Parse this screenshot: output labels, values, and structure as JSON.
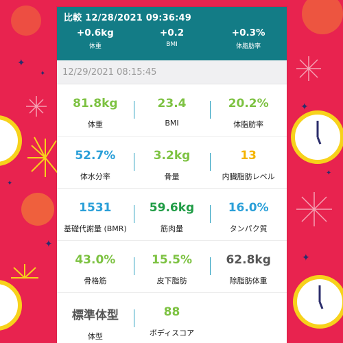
{
  "compare": {
    "title": "比較 12/28/2021 09:36:49",
    "items": [
      {
        "value": "+0.6kg",
        "label": "体重"
      },
      {
        "value": "+0.2",
        "label": "BMI"
      },
      {
        "value": "+0.3%",
        "label": "体脂肪率"
      }
    ]
  },
  "date": "12/29/2021 08:15:45",
  "rows": [
    [
      {
        "value": "81.8kg",
        "label": "体重",
        "color": "#7dc242"
      },
      {
        "value": "23.4",
        "label": "BMI",
        "color": "#7dc242"
      },
      {
        "value": "20.2%",
        "label": "体脂肪率",
        "color": "#7dc242"
      }
    ],
    [
      {
        "value": "52.7%",
        "label": "体水分率",
        "color": "#2a9fd8"
      },
      {
        "value": "3.2kg",
        "label": "骨量",
        "color": "#7dc242"
      },
      {
        "value": "13",
        "label": "内臓脂肪レベル",
        "color": "#f4b400"
      }
    ],
    [
      {
        "value": "1531",
        "label": "基礎代謝量 (BMR)",
        "color": "#2a9fd8"
      },
      {
        "value": "59.6kg",
        "label": "筋肉量",
        "color": "#1f9c45"
      },
      {
        "value": "16.0%",
        "label": "タンパク質",
        "color": "#2a9fd8"
      }
    ],
    [
      {
        "value": "43.0%",
        "label": "骨格筋",
        "color": "#7dc242"
      },
      {
        "value": "15.5%",
        "label": "皮下脂肪",
        "color": "#7dc242"
      },
      {
        "value": "62.8kg",
        "label": "除脂肪体重",
        "color": "#555555"
      }
    ],
    [
      {
        "value": "標準体型",
        "label": "体型",
        "color": "#555555"
      },
      {
        "value": "88",
        "label": "ボディスコア",
        "color": "#7dc242"
      }
    ]
  ]
}
